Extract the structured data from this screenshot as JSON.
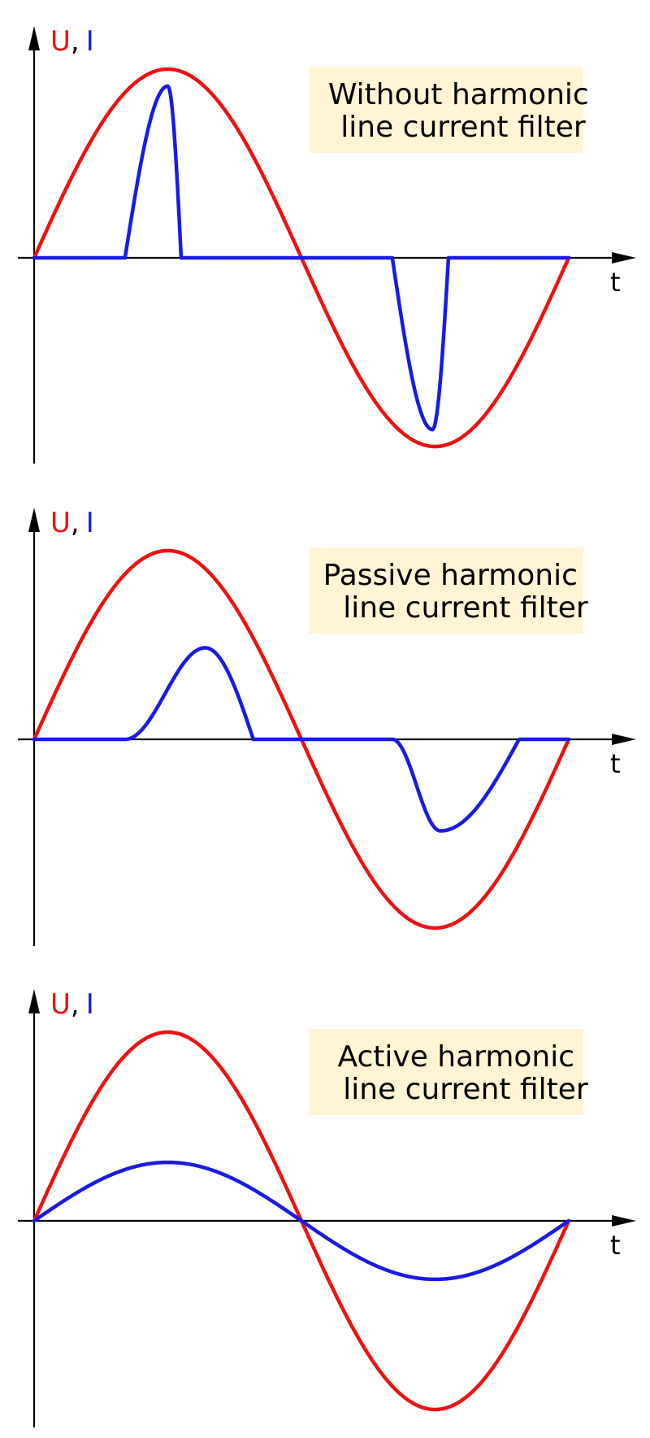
{
  "colors": {
    "voltage": "#ee1111",
    "current": "#1a1ae6",
    "axis": "#000000",
    "label_box": "#fff5d4"
  },
  "legend": {
    "voltage_symbol": "U",
    "separator": ",",
    "current_symbol": "I"
  },
  "time_axis_label": "t",
  "panels": [
    {
      "title_line1": "Without harmonic",
      "title_line2": "line current filter",
      "current_shape": "narrow-peaks"
    },
    {
      "title_line1": "Passive harmonic",
      "title_line2": "line current filter",
      "current_shape": "delayed-humps"
    },
    {
      "title_line1": "Active harmonic",
      "title_line2": "line current filter",
      "current_shape": "sinusoidal-in-phase"
    }
  ]
}
